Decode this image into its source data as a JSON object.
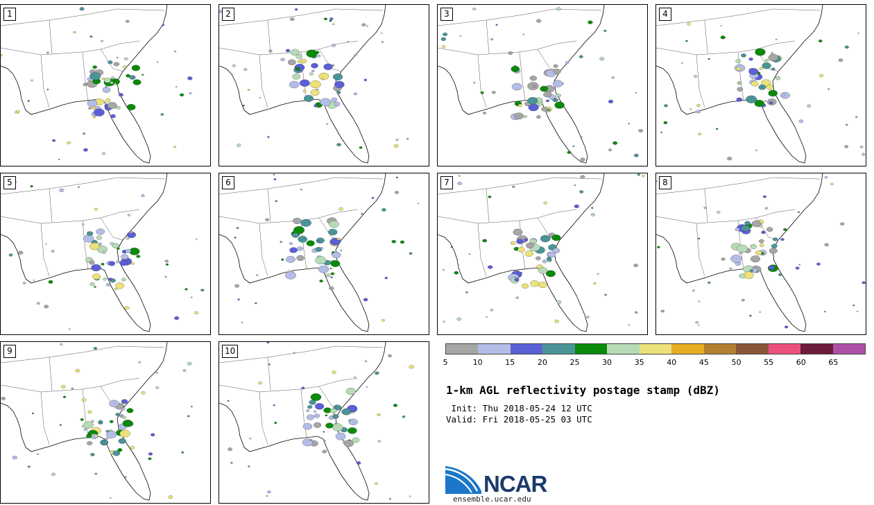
{
  "panels": [
    "1",
    "2",
    "3",
    "4",
    "5",
    "6",
    "7",
    "8",
    "9",
    "10"
  ],
  "colorbar": {
    "ticks": [
      "5",
      "10",
      "15",
      "20",
      "25",
      "30",
      "35",
      "40",
      "45",
      "50",
      "55",
      "60",
      "65"
    ],
    "colors": [
      "#a6a6a6",
      "#b4bde8",
      "#5b5fd6",
      "#4a9498",
      "#0a8a0a",
      "#b7dbb7",
      "#ece27a",
      "#e8ad21",
      "#b57f31",
      "#8b5638",
      "#ec4f7c",
      "#6b1a3c",
      "#ad4fa6"
    ]
  },
  "title": "1-km AGL reflectivity postage stamp (dBZ)",
  "init": " Init: Thu 2018-05-24 12 UTC",
  "valid": "Valid: Fri 2018-05-25 03 UTC",
  "logo": {
    "name": "NCAR",
    "site": "ensemble.ucar.edu"
  }
}
